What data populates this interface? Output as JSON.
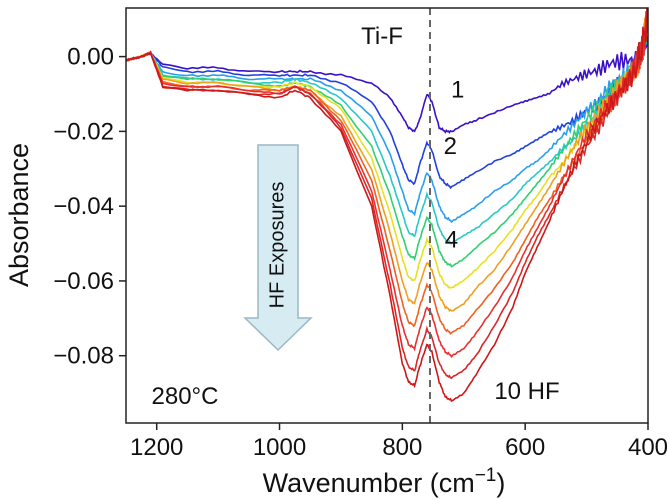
{
  "chart_data": {
    "type": "line",
    "xlabel": "Wavenumber (cm",
    "xlabel_sup": "−1",
    "xlabel_close": ")",
    "ylabel": "Absorbance",
    "xlim": [
      1250,
      400
    ],
    "ylim": [
      -0.098,
      0.013
    ],
    "xticks": [
      1200,
      1000,
      800,
      600,
      400
    ],
    "xtick_labels": [
      "1200",
      "1000",
      "800",
      "600",
      "400"
    ],
    "yticks": [
      0.0,
      -0.02,
      -0.04,
      -0.06,
      -0.08
    ],
    "ytick_labels": [
      "0.00",
      "−0.02",
      "−0.04",
      "−0.06",
      "−0.08"
    ],
    "grid": false,
    "reference_line": {
      "x": 755,
      "label": "Ti-F",
      "style": "dashed"
    },
    "annotations": {
      "temperature": "280°C",
      "final_label": "10 HF",
      "arrow_label": "HF Exposures",
      "curve_labels": [
        {
          "text": "1",
          "x": 710,
          "y": -0.011
        },
        {
          "text": "2",
          "x": 722,
          "y": -0.026
        },
        {
          "text": "4",
          "x": 720,
          "y": -0.051
        }
      ]
    },
    "x": [
      1250,
      1225,
      1210,
      1190,
      1150,
      1100,
      1050,
      1000,
      975,
      950,
      900,
      850,
      820,
      800,
      790,
      780,
      772,
      760,
      752,
      740,
      730,
      720,
      700,
      680,
      650,
      620,
      600,
      580,
      560,
      540,
      520,
      500,
      480,
      460,
      440,
      420,
      410,
      400
    ],
    "series": [
      {
        "color": "#3a10c8",
        "values": [
          -0.001,
          0.0,
          0.001,
          -0.002,
          -0.003,
          -0.003,
          -0.004,
          -0.004,
          -0.004,
          -0.004,
          -0.005,
          -0.007,
          -0.011,
          -0.016,
          -0.019,
          -0.02,
          -0.017,
          -0.01,
          -0.012,
          -0.019,
          -0.02,
          -0.02,
          -0.018,
          -0.017,
          -0.015,
          -0.013,
          -0.012,
          -0.011,
          -0.01,
          -0.008,
          -0.007,
          -0.006,
          -0.005,
          -0.003,
          -0.002,
          -0.001,
          0.002,
          0.006
        ]
      },
      {
        "color": "#2040e0",
        "values": [
          -0.001,
          0.0,
          0.001,
          -0.003,
          -0.004,
          -0.004,
          -0.005,
          -0.005,
          -0.005,
          -0.005,
          -0.007,
          -0.012,
          -0.02,
          -0.029,
          -0.033,
          -0.034,
          -0.029,
          -0.023,
          -0.025,
          -0.032,
          -0.034,
          -0.035,
          -0.033,
          -0.031,
          -0.028,
          -0.026,
          -0.024,
          -0.022,
          -0.02,
          -0.018,
          -0.016,
          -0.013,
          -0.011,
          -0.008,
          -0.005,
          -0.002,
          0.002,
          0.007
        ]
      },
      {
        "color": "#2a9ff0",
        "values": [
          -0.001,
          0.0,
          0.001,
          -0.004,
          -0.005,
          -0.005,
          -0.006,
          -0.006,
          -0.006,
          -0.006,
          -0.009,
          -0.016,
          -0.026,
          -0.036,
          -0.041,
          -0.042,
          -0.037,
          -0.031,
          -0.033,
          -0.04,
          -0.043,
          -0.044,
          -0.042,
          -0.04,
          -0.036,
          -0.033,
          -0.03,
          -0.028,
          -0.025,
          -0.022,
          -0.019,
          -0.016,
          -0.013,
          -0.009,
          -0.006,
          -0.003,
          0.002,
          0.008
        ]
      },
      {
        "color": "#28c8c8",
        "values": [
          -0.001,
          0.0,
          0.001,
          -0.005,
          -0.006,
          -0.006,
          -0.007,
          -0.007,
          -0.006,
          -0.007,
          -0.011,
          -0.02,
          -0.032,
          -0.042,
          -0.047,
          -0.048,
          -0.043,
          -0.037,
          -0.039,
          -0.046,
          -0.049,
          -0.05,
          -0.048,
          -0.046,
          -0.042,
          -0.038,
          -0.034,
          -0.031,
          -0.028,
          -0.024,
          -0.021,
          -0.017,
          -0.014,
          -0.01,
          -0.006,
          -0.003,
          0.002,
          0.009
        ]
      },
      {
        "color": "#30d070",
        "values": [
          -0.001,
          0.0,
          0.001,
          -0.005,
          -0.006,
          -0.006,
          -0.007,
          -0.008,
          -0.007,
          -0.008,
          -0.013,
          -0.024,
          -0.037,
          -0.048,
          -0.053,
          -0.054,
          -0.049,
          -0.043,
          -0.045,
          -0.052,
          -0.055,
          -0.056,
          -0.054,
          -0.051,
          -0.047,
          -0.042,
          -0.038,
          -0.034,
          -0.03,
          -0.026,
          -0.022,
          -0.018,
          -0.014,
          -0.01,
          -0.007,
          -0.003,
          0.002,
          0.009
        ]
      },
      {
        "color": "#e8e020",
        "values": [
          -0.001,
          0.0,
          0.001,
          -0.006,
          -0.007,
          -0.007,
          -0.008,
          -0.008,
          -0.007,
          -0.008,
          -0.014,
          -0.027,
          -0.042,
          -0.054,
          -0.059,
          -0.06,
          -0.055,
          -0.049,
          -0.051,
          -0.058,
          -0.061,
          -0.062,
          -0.06,
          -0.057,
          -0.052,
          -0.046,
          -0.041,
          -0.037,
          -0.032,
          -0.028,
          -0.023,
          -0.019,
          -0.015,
          -0.011,
          -0.007,
          -0.003,
          0.002,
          0.01
        ]
      },
      {
        "color": "#f0a020",
        "values": [
          -0.001,
          0.0,
          0.001,
          -0.006,
          -0.007,
          -0.007,
          -0.008,
          -0.009,
          -0.008,
          -0.009,
          -0.016,
          -0.03,
          -0.047,
          -0.06,
          -0.065,
          -0.066,
          -0.061,
          -0.055,
          -0.057,
          -0.064,
          -0.067,
          -0.068,
          -0.066,
          -0.062,
          -0.057,
          -0.05,
          -0.045,
          -0.04,
          -0.035,
          -0.03,
          -0.025,
          -0.02,
          -0.016,
          -0.011,
          -0.007,
          -0.003,
          0.002,
          0.01
        ]
      },
      {
        "color": "#f06020",
        "values": [
          -0.001,
          0.0,
          0.001,
          -0.007,
          -0.008,
          -0.008,
          -0.009,
          -0.009,
          -0.008,
          -0.009,
          -0.017,
          -0.033,
          -0.052,
          -0.066,
          -0.071,
          -0.072,
          -0.067,
          -0.061,
          -0.063,
          -0.07,
          -0.073,
          -0.074,
          -0.072,
          -0.068,
          -0.062,
          -0.055,
          -0.049,
          -0.043,
          -0.038,
          -0.032,
          -0.027,
          -0.021,
          -0.017,
          -0.012,
          -0.008,
          -0.003,
          0.002,
          0.011
        ]
      },
      {
        "color": "#e83030",
        "values": [
          -0.001,
          0.0,
          0.001,
          -0.007,
          -0.008,
          -0.008,
          -0.009,
          -0.01,
          -0.008,
          -0.01,
          -0.018,
          -0.036,
          -0.057,
          -0.072,
          -0.077,
          -0.078,
          -0.073,
          -0.067,
          -0.069,
          -0.076,
          -0.079,
          -0.08,
          -0.078,
          -0.074,
          -0.067,
          -0.059,
          -0.052,
          -0.046,
          -0.04,
          -0.034,
          -0.028,
          -0.022,
          -0.017,
          -0.012,
          -0.008,
          -0.003,
          0.002,
          0.011
        ]
      },
      {
        "color": "#d82828",
        "values": [
          -0.001,
          0.0,
          0.001,
          -0.008,
          -0.009,
          -0.009,
          -0.01,
          -0.01,
          -0.008,
          -0.01,
          -0.019,
          -0.038,
          -0.061,
          -0.078,
          -0.083,
          -0.084,
          -0.079,
          -0.073,
          -0.075,
          -0.082,
          -0.085,
          -0.086,
          -0.084,
          -0.08,
          -0.072,
          -0.063,
          -0.055,
          -0.048,
          -0.042,
          -0.035,
          -0.029,
          -0.023,
          -0.018,
          -0.013,
          -0.008,
          -0.003,
          0.002,
          0.012
        ]
      },
      {
        "color": "#cc1818",
        "values": [
          -0.001,
          0.0,
          0.001,
          -0.008,
          -0.009,
          -0.009,
          -0.01,
          -0.011,
          -0.009,
          -0.011,
          -0.02,
          -0.04,
          -0.064,
          -0.082,
          -0.087,
          -0.088,
          -0.083,
          -0.077,
          -0.079,
          -0.087,
          -0.091,
          -0.092,
          -0.09,
          -0.085,
          -0.077,
          -0.067,
          -0.058,
          -0.051,
          -0.044,
          -0.037,
          -0.03,
          -0.024,
          -0.018,
          -0.013,
          -0.008,
          -0.003,
          0.002,
          0.012
        ]
      }
    ]
  }
}
